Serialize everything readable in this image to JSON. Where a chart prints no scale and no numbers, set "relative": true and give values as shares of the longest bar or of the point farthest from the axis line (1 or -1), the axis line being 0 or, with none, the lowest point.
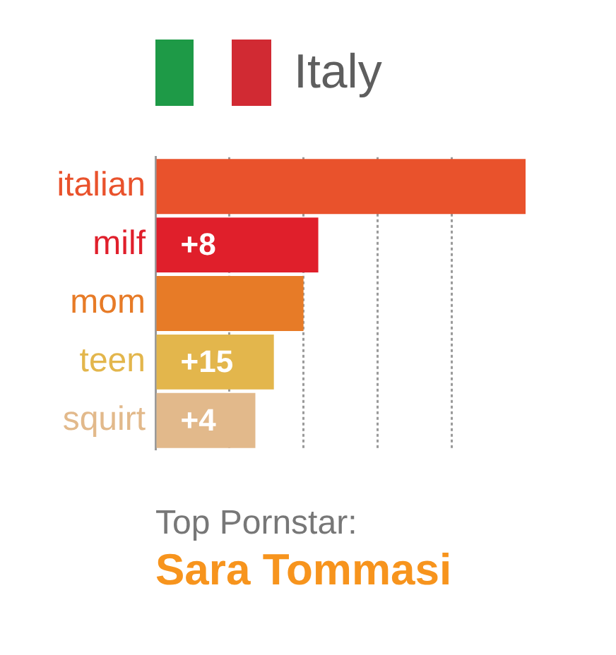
{
  "chart_data": {
    "type": "bar",
    "title": "Italy",
    "orientation": "horizontal",
    "relative": true,
    "categories": [
      "italian",
      "milf",
      "mom",
      "teen",
      "squirt"
    ],
    "values": [
      1,
      0.44,
      0.4,
      0.32,
      0.27
    ],
    "colors": [
      "#e9522c",
      "#e01f2b",
      "#e77b27",
      "#e3b64c",
      "#e2b98b"
    ],
    "grid": "x",
    "annotations": [
      {
        "text": "+8",
        "y": "milf"
      },
      {
        "text": "+15",
        "y": "teen"
      },
      {
        "text": "+4",
        "y": "squirt"
      },
      "Top Pornstar:",
      "Sara Tommasi"
    ]
  }
}
